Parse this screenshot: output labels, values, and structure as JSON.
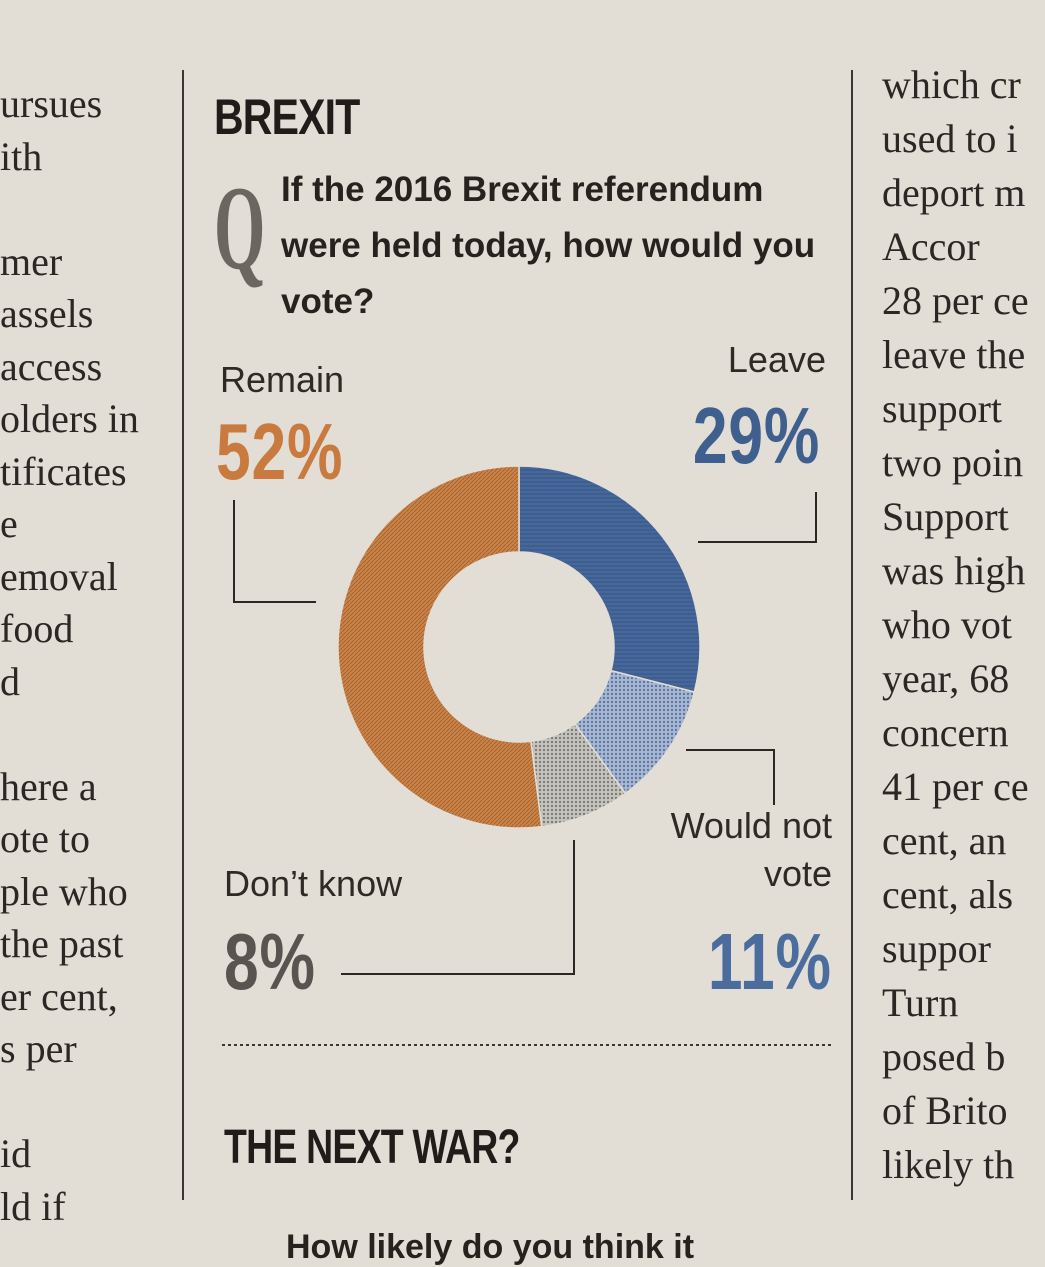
{
  "left_column": [
    "ursues",
    "ith",
    "",
    "mer",
    "assels",
    " access",
    "olders in",
    "tificates",
    "e",
    "emoval",
    " food",
    "d",
    "",
    "here a",
    "ote to",
    "ple who",
    " the past",
    "er cent,",
    "s per",
    "",
    "id",
    "ld if"
  ],
  "right_column": [
    "which cr",
    "used to i",
    "deport m",
    "  Accor",
    "28 per ce",
    "leave the",
    "support",
    "two poin",
    "Support",
    "was high",
    "who vot",
    "year, 68",
    "concern",
    "41 per ce",
    "cent, an",
    "cent, als",
    "suppor",
    "  Turn",
    "posed b",
    "of Brito",
    "likely th",
    ""
  ],
  "panel": {
    "title": "BREXIT",
    "q_mark": "Q",
    "question": "If the 2016 Brexit referendum were held today, how would you vote?",
    "next_title": "THE NEXT WAR?",
    "next_question": "How likely do you think it"
  },
  "chart_data": {
    "type": "pie",
    "variant": "donut",
    "title": "",
    "categories": [
      "Leave",
      "Would not vote",
      "Don't know",
      "Remain"
    ],
    "values": [
      29,
      11,
      8,
      52
    ],
    "labels": [
      "Leave",
      "Would not vote",
      "Don’t know",
      "Remain"
    ],
    "value_labels": [
      "29%",
      "11%",
      "8%",
      "52%"
    ],
    "colors": {
      "Leave": "#46679a",
      "Would not vote": "#8ea2c2",
      "Don't know": "#a7a5a0",
      "Remain": "#c98449"
    },
    "start": "12 o'clock",
    "direction": "clockwise"
  }
}
